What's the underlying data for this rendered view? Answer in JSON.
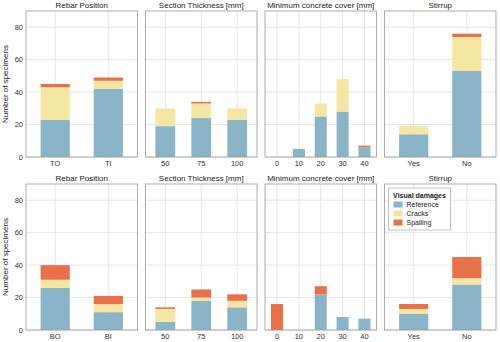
{
  "chart_data": [
    {
      "type": "bar",
      "stacked": true,
      "grid": true,
      "title": "Rebar Position",
      "y_label": "Number of specimens",
      "categories": [
        "TO",
        "TI"
      ],
      "series": [
        {
          "color": "#8ab4c8",
          "values": [
            23,
            42
          ]
        },
        {
          "color": "#f5e6a3",
          "values": [
            20,
            5
          ]
        },
        {
          "color": "#e8714a",
          "values": [
            2,
            2
          ]
        }
      ],
      "ylim": [
        0,
        90
      ],
      "yticks": [
        0,
        20,
        40,
        60,
        80
      ]
    },
    {
      "type": "bar",
      "stacked": true,
      "grid": true,
      "tick_labels": "x",
      "title": "Section Thickness [mm]",
      "categories": [
        "50",
        "75",
        "100"
      ],
      "series": [
        {
          "color": "#8ab4c8",
          "values": [
            19,
            24,
            23
          ]
        },
        {
          "color": "#f5e6a3",
          "values": [
            11,
            9,
            7
          ]
        },
        {
          "color": "#e8714a",
          "values": [
            0,
            1,
            0
          ]
        }
      ],
      "ylim": [
        0,
        90
      ],
      "yticks": [
        0,
        20,
        40,
        60,
        80
      ]
    },
    {
      "type": "bar",
      "stacked": true,
      "grid": true,
      "tick_labels": "x",
      "title": "Minimum concrete cover [mm]",
      "categories": [
        "0",
        "10",
        "20",
        "30",
        "40"
      ],
      "series": [
        {
          "color": "#8ab4c8",
          "values": [
            0,
            5,
            25,
            28,
            6
          ]
        },
        {
          "color": "#f5e6a3",
          "values": [
            0,
            0,
            8,
            20,
            0
          ]
        },
        {
          "color": "#e8714a",
          "values": [
            0,
            0,
            0,
            0,
            1
          ]
        }
      ],
      "ylim": [
        0,
        90
      ],
      "yticks": [
        0,
        20,
        40,
        60,
        80
      ]
    },
    {
      "type": "bar",
      "stacked": true,
      "grid": true,
      "tick_labels": "x",
      "title": "Stirrup",
      "categories": [
        "Yes",
        "No"
      ],
      "series": [
        {
          "color": "#8ab4c8",
          "values": [
            14,
            53
          ]
        },
        {
          "color": "#f5e6a3",
          "values": [
            5,
            21
          ]
        },
        {
          "color": "#e8714a",
          "values": [
            0,
            2
          ]
        }
      ],
      "ylim": [
        0,
        90
      ],
      "yticks": [
        0,
        20,
        40,
        60,
        80
      ]
    },
    {
      "type": "bar",
      "stacked": true,
      "grid": true,
      "title": "Rebar Position",
      "y_label": "Number of specimens",
      "categories": [
        "BO",
        "BI"
      ],
      "series": [
        {
          "color": "#8ab4c8",
          "values": [
            26,
            11
          ]
        },
        {
          "color": "#f5e6a3",
          "values": [
            5,
            5
          ]
        },
        {
          "color": "#e8714a",
          "values": [
            9,
            5
          ]
        }
      ],
      "ylim": [
        0,
        90
      ],
      "yticks": [
        0,
        20,
        40,
        60,
        80
      ]
    },
    {
      "type": "bar",
      "stacked": true,
      "grid": true,
      "tick_labels": "x",
      "title": "Section Thickness [mm]",
      "categories": [
        "50",
        "75",
        "100"
      ],
      "series": [
        {
          "color": "#8ab4c8",
          "values": [
            5,
            18,
            14
          ]
        },
        {
          "color": "#f5e6a3",
          "values": [
            8,
            2,
            4
          ]
        },
        {
          "color": "#e8714a",
          "values": [
            1,
            5,
            4
          ]
        }
      ],
      "ylim": [
        0,
        90
      ],
      "yticks": [
        0,
        20,
        40,
        60,
        80
      ]
    },
    {
      "type": "bar",
      "stacked": true,
      "grid": true,
      "tick_labels": "x",
      "title": "Minimum concrete cover [mm]",
      "categories": [
        "0",
        "10",
        "20",
        "30",
        "40"
      ],
      "series": [
        {
          "color": "#8ab4c8",
          "values": [
            0,
            0,
            22,
            8,
            7
          ]
        },
        {
          "color": "#f5e6a3",
          "values": [
            0,
            0,
            0,
            0,
            0
          ]
        },
        {
          "color": "#e8714a",
          "values": [
            16,
            0,
            5,
            0,
            0
          ]
        }
      ],
      "ylim": [
        0,
        90
      ],
      "yticks": [
        0,
        20,
        40,
        60,
        80
      ]
    },
    {
      "type": "bar",
      "stacked": true,
      "grid": true,
      "tick_labels": "x",
      "title": "Stirrup",
      "categories": [
        "Yes",
        "No"
      ],
      "series": [
        {
          "name": "Reference",
          "color": "#8ab4c8",
          "values": [
            10,
            28
          ]
        },
        {
          "name": "Cracks",
          "color": "#f5e6a3",
          "values": [
            3,
            4
          ]
        },
        {
          "name": "Spalling",
          "color": "#e8714a",
          "values": [
            3,
            13
          ]
        }
      ],
      "ylim": [
        0,
        90
      ],
      "yticks": [
        0,
        20,
        40,
        60,
        80
      ],
      "legend": "top-left",
      "legend_title": "Visual damages"
    }
  ]
}
